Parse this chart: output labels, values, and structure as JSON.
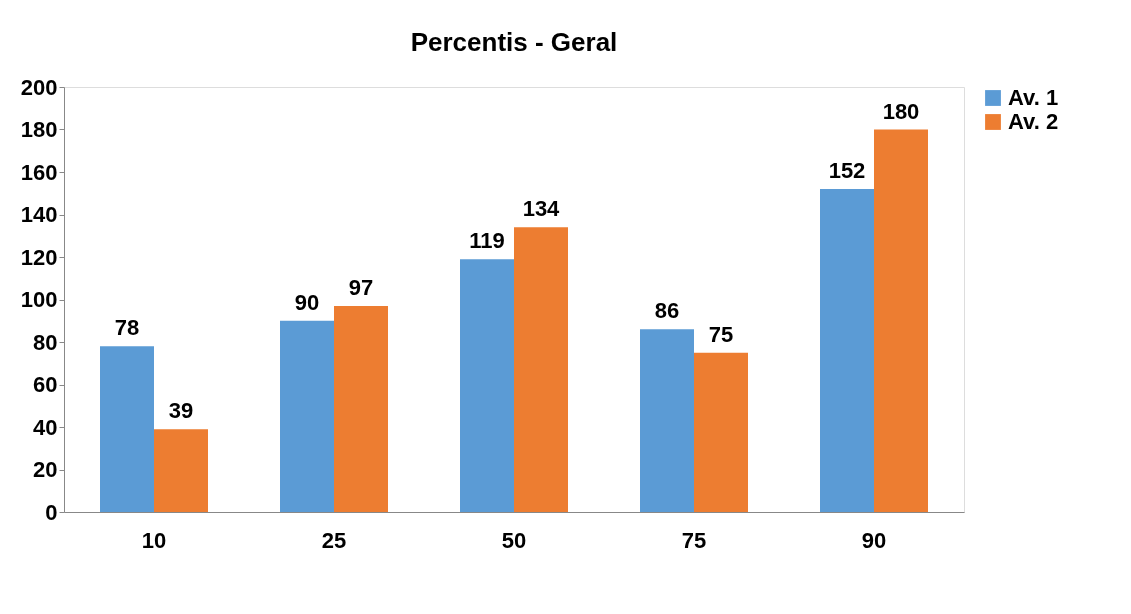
{
  "chart_data": {
    "type": "bar",
    "title": "Percentis - Geral",
    "categories": [
      "10",
      "25",
      "50",
      "75",
      "90"
    ],
    "series": [
      {
        "name": "Av. 1",
        "color": "#5b9bd5",
        "values": [
          78,
          90,
          119,
          86,
          152
        ]
      },
      {
        "name": "Av. 2",
        "color": "#ed7d31",
        "values": [
          39,
          97,
          134,
          75,
          180
        ]
      }
    ],
    "ylim": [
      0,
      200
    ],
    "yticks": [
      0,
      20,
      40,
      60,
      80,
      100,
      120,
      140,
      160,
      180,
      200
    ],
    "grid": false,
    "legend": "right",
    "data_labels": true
  }
}
